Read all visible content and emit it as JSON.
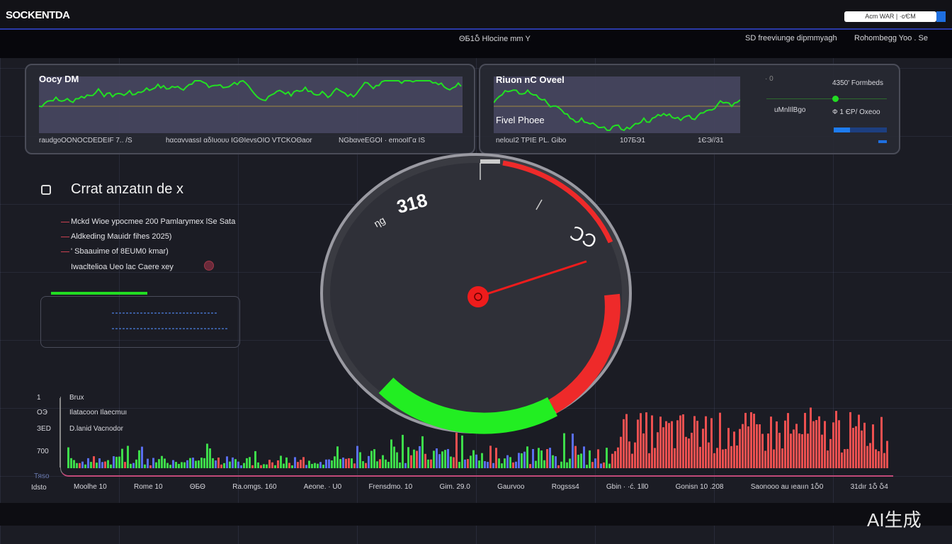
{
  "app": {
    "logo": "SOCKENTDA",
    "top_button": "Acm WAR  |  ·c∕ЄM",
    "accent": "#1e6fe0"
  },
  "subheader": {
    "left": "ΘБ1Ⴢ  Hlocine mm Y",
    "right1": "SD  freeviunge  dipmmyagh",
    "right2": "Rohombegg  Yoo . Se"
  },
  "panel1": {
    "title": "Oocy DM",
    "footer": [
      "raudgoOONOCDEDEIF 7.. /S",
      "hαcαvνassI αδIυουυ IGΘIevsOIO VTCKOΘaor",
      "NGbαveEGOI · emooIΓα IS"
    ]
  },
  "panel2": {
    "title": "Riuon nC Oveel",
    "label": "Fivel Phoee",
    "footer": [
      "nelouI2 TPIE PL. Gibo",
      "107БЭ1",
      "1ЄЭ//31"
    ],
    "side": {
      "zero": "· 0",
      "stat1": "4350' Formbeds",
      "stat2": "uMnlIlBgo",
      "stat3": "Ф 1 ЄР/ Oxeoo",
      "progress": 0.3
    }
  },
  "section": {
    "title": "Crrat anzatın de x",
    "items": [
      "Mckd Wioe ypocmee 200  Pamlarymex lSe  Sata",
      "Aldkeding Mauidr fihes 2025)",
      "' Sbaauime  of  8EUM0 kmar)",
      "Iwacltelioa Ueo lac Caere xey"
    ],
    "progress": 0.5
  },
  "gauge": {
    "label": "ηg",
    "value": "318",
    "marker": "ↃƆ",
    "colors": {
      "low": "#22ee22",
      "high": "#ee2a2a"
    }
  },
  "bottom_chart": {
    "y_labels": [
      "1",
      "OЭ",
      "ЗЕD",
      "700",
      "Тяsо",
      "Idsto"
    ],
    "legend": [
      "Brux",
      "Ilatacoon Ilaecmuı",
      "D.lanid Vacnodor"
    ],
    "x_labels": [
      "Moolhe 10",
      "Rome 10",
      "ΘБΘ",
      "Ra.omgs. 160",
      "Aeone. · U0",
      "Frensdmo. 10",
      "Gim. 29.0",
      "Gaurvoo",
      "Rogsss4",
      "Gbin · ·ć. 1ll0",
      "Gonisn 10  .208",
      "Saonooo  au ıeaıın  1Ⴢ0",
      "31dır  1Ⴢ  Ⴢ4"
    ],
    "colors": {
      "low": "#3ddc4a",
      "mid": "#5a6ff0",
      "high": "#ee5050"
    }
  },
  "watermark": "AI生成"
}
